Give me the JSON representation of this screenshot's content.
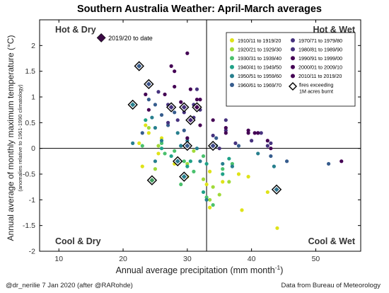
{
  "chart_data": {
    "type": "scatter",
    "title": "Southern Australia Weather: April-March averages",
    "xlabel": "Annual average precipitation (mm month",
    "xlabel_sup": "-1",
    "xlabel_close": ")",
    "ylabel": "Annual average of monthly maximum temperature (°C)",
    "ylabel_sub": "(anomalies relative to 1961-1990 climatology)",
    "xlim": [
      7,
      57
    ],
    "ylim": [
      -2,
      2.5
    ],
    "xticks": [
      "10",
      "20",
      "30",
      "40",
      "50"
    ],
    "xtick_values": [
      10,
      20,
      30,
      40,
      50
    ],
    "yticks": [
      "-2",
      "-1.5",
      "-1",
      "-0.5",
      "0",
      "0.5",
      "1",
      "1.5",
      "2"
    ],
    "ytick_values": [
      -2,
      -1.5,
      -1,
      -0.5,
      0,
      0.5,
      1,
      1.5,
      2
    ],
    "reference_lines": {
      "x": 33,
      "y": 0
    },
    "quadrant_labels": {
      "top_left": "Hot & Dry",
      "top_right": "Hot & Wet",
      "bottom_left": "Cool & Dry",
      "bottom_right": "Cool & Wet"
    },
    "legend": {
      "placement": "top-right",
      "marker_label": "fires exceeding",
      "marker_label2": "1M acres burnt"
    },
    "highlight": {
      "x": 16.6,
      "y": 2.15,
      "label": "2019/20 to date",
      "color": "#3b0a45"
    },
    "series": [
      {
        "name": "1910/11 to 1919/20",
        "color": "#dfe318",
        "points": [
          [
            23.5,
            0.45
          ],
          [
            24.0,
            0.3
          ],
          [
            22.5,
            0.1
          ],
          [
            26.0,
            0.2
          ],
          [
            25.5,
            -0.1
          ],
          [
            28.0,
            -0.3
          ],
          [
            30.0,
            -0.55
          ],
          [
            35.5,
            -0.65
          ],
          [
            38.0,
            -0.5
          ],
          [
            39.5,
            -0.55
          ],
          [
            42.5,
            -0.85
          ],
          [
            33.5,
            -0.45
          ],
          [
            33.0,
            -0.7
          ],
          [
            44.0,
            -1.55
          ],
          [
            38.5,
            -1.2
          ],
          [
            33.5,
            -1.15
          ],
          [
            23.0,
            -0.35
          ]
        ]
      },
      {
        "name": "1920/21 to 1929/30",
        "color": "#a0da39",
        "points": [
          [
            24.0,
            0.4
          ],
          [
            25.5,
            0.05
          ],
          [
            30.0,
            -0.3
          ],
          [
            32.5,
            -0.6
          ],
          [
            34.0,
            -0.75
          ],
          [
            36.5,
            -0.65
          ],
          [
            35.0,
            -0.9
          ],
          [
            31.0,
            -0.05
          ],
          [
            33.5,
            -1.0
          ],
          [
            25.0,
            -0.4
          ]
        ]
      },
      {
        "name": "1930/31 to 1939/40",
        "color": "#4ac16d",
        "points": [
          [
            26.0,
            0.1
          ],
          [
            26.5,
            -0.1
          ],
          [
            28.0,
            -0.05
          ],
          [
            29.5,
            -0.25
          ],
          [
            32.5,
            -0.15
          ],
          [
            35.5,
            -0.4
          ],
          [
            37.0,
            -0.3
          ],
          [
            34.0,
            -1.1
          ],
          [
            23.0,
            0.05
          ],
          [
            31.0,
            -0.45
          ],
          [
            29.0,
            -0.7
          ],
          [
            33.0,
            -0.95
          ]
        ]
      },
      {
        "name": "1940/41 to 1949/50",
        "color": "#1fa187",
        "points": [
          [
            23.5,
            0.55
          ],
          [
            26.0,
            0.0
          ],
          [
            27.5,
            -0.15
          ],
          [
            30.5,
            -0.25
          ],
          [
            33.0,
            -0.3
          ],
          [
            36.5,
            -0.2
          ],
          [
            32.5,
            -0.85
          ],
          [
            29.0,
            0.05
          ],
          [
            35.5,
            -0.5
          ],
          [
            30.0,
            -0.35
          ]
        ]
      },
      {
        "name": "1950/51 to 1959/60",
        "color": "#277f8e",
        "points": [
          [
            21.5,
            0.1
          ],
          [
            24.5,
            0.6
          ],
          [
            25.0,
            0.4
          ],
          [
            26.0,
            0.15
          ],
          [
            28.5,
            0.3
          ],
          [
            29.0,
            0.05
          ],
          [
            31.5,
            0.0
          ],
          [
            32.0,
            -0.25
          ],
          [
            35.5,
            -0.3
          ],
          [
            37.0,
            -0.35
          ],
          [
            34.5,
            0.05
          ],
          [
            41.0,
            -0.1
          ],
          [
            43.5,
            -0.35
          ],
          [
            33.0,
            -1.0
          ],
          [
            30.0,
            0.15
          ],
          [
            25.0,
            -0.25
          ]
        ]
      },
      {
        "name": "1960/61 to 1969/70",
        "color": "#365c8d",
        "points": [
          [
            24.0,
            0.95
          ],
          [
            25.0,
            0.85
          ],
          [
            26.0,
            0.65
          ],
          [
            27.0,
            0.45
          ],
          [
            28.0,
            0.7
          ],
          [
            30.5,
            0.5
          ],
          [
            34.5,
            0.2
          ],
          [
            38.0,
            0.05
          ],
          [
            43.0,
            -0.15
          ],
          [
            52.0,
            -0.3
          ],
          [
            45.5,
            -0.25
          ],
          [
            23.0,
            0.3
          ],
          [
            29.5,
            0.35
          ]
        ]
      },
      {
        "name": "1970/71 to 1979/80",
        "color": "#46327e",
        "points": [
          [
            27.0,
            0.5
          ],
          [
            29.5,
            0.7
          ],
          [
            32.0,
            0.75
          ],
          [
            34.0,
            0.25
          ],
          [
            35.0,
            0.0
          ],
          [
            37.5,
            0.1
          ],
          [
            41.0,
            0.3
          ],
          [
            43.0,
            0.1
          ],
          [
            31.0,
            0.85
          ],
          [
            36.0,
            0.35
          ]
        ]
      },
      {
        "name": "1980/81 to 1989/90",
        "color": "#46327e",
        "points": [
          [
            25.5,
            1.1
          ],
          [
            27.0,
            0.85
          ],
          [
            31.0,
            0.6
          ],
          [
            36.0,
            0.55
          ],
          [
            40.0,
            0.15
          ],
          [
            41.5,
            0.3
          ],
          [
            42.5,
            0.05
          ],
          [
            28.5,
            0.55
          ],
          [
            31.5,
            1.15
          ]
        ]
      },
      {
        "name": "1990/91 to 1999/00",
        "color": "#440154",
        "points": [
          [
            28.0,
            1.5
          ],
          [
            24.0,
            0.75
          ],
          [
            26.5,
            1.05
          ],
          [
            30.5,
            1.15
          ],
          [
            32.0,
            0.45
          ],
          [
            39.5,
            0.35
          ],
          [
            40.5,
            0.3
          ],
          [
            42.5,
            0.15
          ],
          [
            54.0,
            -0.25
          ]
        ]
      },
      {
        "name": "2000/01 to 2009/10",
        "color": "#440154",
        "points": [
          [
            27.5,
            1.6
          ],
          [
            28.0,
            1.2
          ],
          [
            23.5,
            1.05
          ],
          [
            32.0,
            0.95
          ],
          [
            34.0,
            0.55
          ],
          [
            36.0,
            0.3
          ],
          [
            29.0,
            0.9
          ],
          [
            30.0,
            0.2
          ]
        ]
      },
      {
        "name": "2010/11 to 2019/20",
        "color": "#440154",
        "points": [
          [
            30.0,
            1.85
          ],
          [
            31.5,
            0.95
          ],
          [
            36.0,
            0.4
          ],
          [
            39.5,
            0.3
          ],
          [
            43.0,
            0.0
          ],
          [
            41.0,
            0.3
          ]
        ]
      }
    ],
    "fire_years": [
      [
        21.5,
        0.85
      ],
      [
        22.5,
        1.6
      ],
      [
        24.0,
        1.25
      ],
      [
        27.5,
        0.8
      ],
      [
        29.5,
        0.8
      ],
      [
        31.5,
        0.8
      ],
      [
        30.5,
        0.55
      ],
      [
        30.0,
        0.05
      ],
      [
        28.5,
        -0.25
      ],
      [
        29.5,
        -0.55
      ],
      [
        34.0,
        0.05
      ],
      [
        24.5,
        -0.62
      ],
      [
        43.9,
        -0.8
      ]
    ],
    "fire_colors": [
      "#277f8e",
      "#365c8d",
      "#3b528b",
      "#46327e",
      "#46327e",
      "#440154",
      "#482878",
      "#365c8d",
      "#2a788e",
      "#277f8e",
      "#3e4989",
      "#3e9a5b",
      "#2c728e"
    ]
  },
  "footer": {
    "left": "@dr_nerilie 7 Jan 2020 (after @RARohde)",
    "right": "Data from Bureau of Meteorology"
  }
}
